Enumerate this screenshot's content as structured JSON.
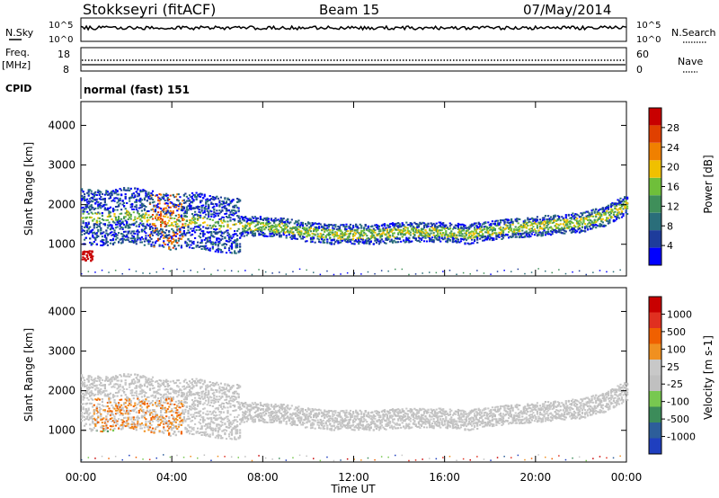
{
  "header": {
    "station": "Stokkseyri (fitACF)",
    "beam": "Beam 15",
    "date": "07/May/2014"
  },
  "side_labels": {
    "n_sky": "N.Sky",
    "freq": "Freq.",
    "freq_unit": "[MHz]",
    "cpid": "CPID",
    "n_search": "N.Search",
    "nave": "Nave"
  },
  "top_axes": {
    "nsky_top": "10^5",
    "nsky_bottom": "10^0",
    "nsearch_top": "10^5",
    "nsearch_bottom": "10^0",
    "freq_top": "18",
    "freq_bottom": "8",
    "nave_top": "60",
    "nave_bottom": "0"
  },
  "cpid_text": "normal (fast) 151",
  "colors": {
    "power": [
      "#0000ff",
      "#1e3c9b",
      "#2a6e7a",
      "#3f8f5a",
      "#6fbf3a",
      "#f0c000",
      "#f08000",
      "#e04000",
      "#c80000"
    ],
    "velocity": [
      "#1f3fbf",
      "#2d5e9a",
      "#3c8c5a",
      "#78c850",
      "#c0c0c0",
      "#c8c8c8",
      "#f09020",
      "#f06000",
      "#e03020",
      "#c80000"
    ]
  },
  "chart_data": [
    {
      "type": "heatmap",
      "name": "power",
      "ylabel": "Slant Range [km]",
      "yticks": [
        "1000",
        "2000",
        "3000",
        "4000"
      ],
      "ylim": [
        200,
        4600
      ],
      "xlim": [
        "00:00",
        "24:00"
      ],
      "colorbar": {
        "label": "Power [dB]",
        "ticks": [
          "4",
          "8",
          "12",
          "16",
          "20",
          "24",
          "28"
        ],
        "range": [
          0,
          30
        ]
      },
      "echo_band": {
        "hours": [
          0,
          1,
          2,
          3,
          4,
          5,
          6,
          7,
          8,
          9,
          10,
          11,
          12,
          13,
          14,
          15,
          16,
          17,
          18,
          19,
          20,
          21,
          22,
          23,
          24
        ],
        "range_km": [
          1700,
          1650,
          1750,
          1650,
          1550,
          1600,
          1500,
          1450,
          1450,
          1400,
          1300,
          1250,
          1250,
          1250,
          1300,
          1300,
          1300,
          1250,
          1350,
          1400,
          1450,
          1500,
          1550,
          1700,
          2000
        ]
      }
    },
    {
      "type": "heatmap",
      "name": "velocity",
      "ylabel": "Slant Range [km]",
      "yticks": [
        "1000",
        "2000",
        "3000",
        "4000"
      ],
      "ylim": [
        200,
        4600
      ],
      "xlim": [
        "00:00",
        "24:00"
      ],
      "colorbar": {
        "label": "Velocity [m s-1]",
        "ticks": [
          "1000",
          "500",
          "100",
          "25",
          "-25",
          "-100",
          "-500",
          "-1000"
        ]
      }
    }
  ],
  "x_axis": {
    "label": "Time UT",
    "ticks": [
      "00:00",
      "04:00",
      "08:00",
      "12:00",
      "16:00",
      "20:00",
      "00:00"
    ]
  }
}
